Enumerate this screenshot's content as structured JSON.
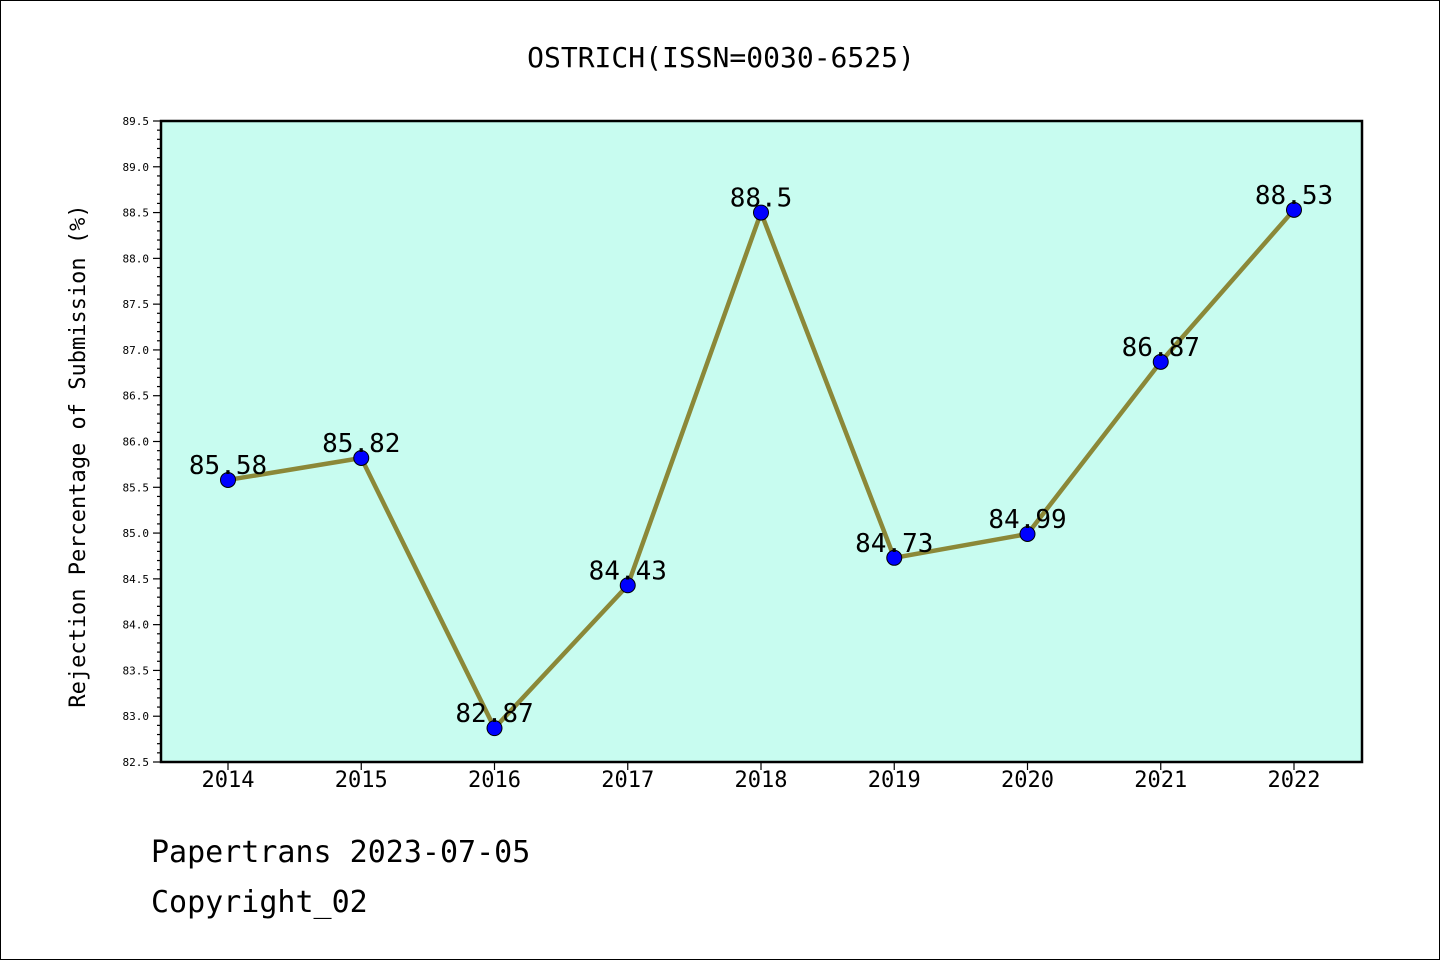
{
  "chart_data": {
    "type": "line",
    "title": "OSTRICH(ISSN=0030-6525)",
    "xlabel": "",
    "ylabel": "Rejection Percentage of Submission (%)",
    "x": [
      "2014",
      "2015",
      "2016",
      "2017",
      "2018",
      "2019",
      "2020",
      "2021",
      "2022"
    ],
    "series": [
      {
        "values": [
          85.58,
          85.82,
          82.87,
          84.43,
          88.5,
          84.73,
          84.99,
          86.87,
          88.53
        ]
      }
    ],
    "data_labels": [
      "85.58",
      "85.82",
      "82.87",
      "84.43",
      "88.5",
      "84.73",
      "84.99",
      "86.87",
      "88.53"
    ],
    "ylim": [
      82.5,
      89.5
    ],
    "yticks": [
      "82.5",
      "83.0",
      "83.5",
      "84.0",
      "84.5",
      "85.0",
      "85.5",
      "86.0",
      "86.5",
      "87.0",
      "87.5",
      "88.0",
      "88.5",
      "89.0",
      "89.5"
    ],
    "grid": false,
    "legend": "none",
    "colors": {
      "plot_background": "#c8fcf0",
      "line": "#8b8838",
      "marker": "#0000ff"
    }
  },
  "footer": {
    "line1": "Papertrans 2023-07-05",
    "line2": "Copyright_02"
  }
}
